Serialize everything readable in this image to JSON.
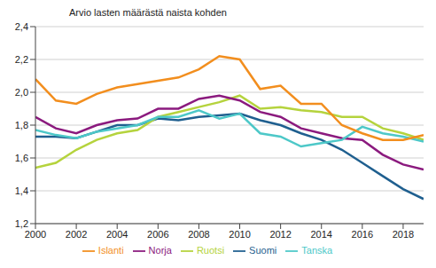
{
  "chart_data": {
    "type": "line",
    "y_label": "Arvio lasten määrästä naista kohden",
    "x": [
      2000,
      2001,
      2002,
      2003,
      2004,
      2005,
      2006,
      2007,
      2008,
      2009,
      2010,
      2011,
      2012,
      2013,
      2014,
      2015,
      2016,
      2017,
      2018,
      2019
    ],
    "series": [
      {
        "name": "Suomi",
        "color": "#1f5f8f",
        "values": [
          1.73,
          1.73,
          1.72,
          1.76,
          1.8,
          1.8,
          1.84,
          1.83,
          1.85,
          1.86,
          1.87,
          1.83,
          1.8,
          1.75,
          1.71,
          1.65,
          1.57,
          1.49,
          1.41,
          1.35
        ]
      },
      {
        "name": "Ruotsi",
        "color": "#b5d33d",
        "values": [
          1.54,
          1.57,
          1.65,
          1.71,
          1.75,
          1.77,
          1.85,
          1.88,
          1.91,
          1.94,
          1.98,
          1.9,
          1.91,
          1.89,
          1.88,
          1.85,
          1.85,
          1.78,
          1.75,
          1.71
        ]
      },
      {
        "name": "Norja",
        "color": "#8b1a7e",
        "values": [
          1.85,
          1.78,
          1.75,
          1.8,
          1.83,
          1.84,
          1.9,
          1.9,
          1.96,
          1.98,
          1.95,
          1.88,
          1.85,
          1.78,
          1.75,
          1.72,
          1.71,
          1.62,
          1.56,
          1.53
        ]
      },
      {
        "name": "Tanska",
        "color": "#4dc8c8",
        "values": [
          1.77,
          1.74,
          1.72,
          1.76,
          1.78,
          1.8,
          1.85,
          1.85,
          1.89,
          1.84,
          1.87,
          1.75,
          1.73,
          1.67,
          1.69,
          1.71,
          1.79,
          1.75,
          1.73,
          1.7
        ]
      },
      {
        "name": "Islanti",
        "color": "#f28e1e",
        "values": [
          2.08,
          1.95,
          1.93,
          1.99,
          2.03,
          2.05,
          2.07,
          2.09,
          2.14,
          2.22,
          2.2,
          2.02,
          2.04,
          1.93,
          1.93,
          1.8,
          1.75,
          1.71,
          1.71,
          1.74
        ]
      }
    ],
    "xlim": [
      2000,
      2019
    ],
    "xticks": [
      2000,
      2002,
      2004,
      2006,
      2008,
      2010,
      2012,
      2014,
      2016,
      2018
    ],
    "ylim": [
      1.2,
      2.4
    ],
    "yticks": [
      {
        "value": 1.2,
        "label": "1,2"
      },
      {
        "value": 1.4,
        "label": "1,4"
      },
      {
        "value": 1.6,
        "label": "1,6"
      },
      {
        "value": 1.8,
        "label": "1,8"
      },
      {
        "value": 2.0,
        "label": "2,0"
      },
      {
        "value": 2.2,
        "label": "2,2"
      },
      {
        "value": 2.4,
        "label": "2,4"
      }
    ],
    "grid": true,
    "legend": "bottom"
  }
}
